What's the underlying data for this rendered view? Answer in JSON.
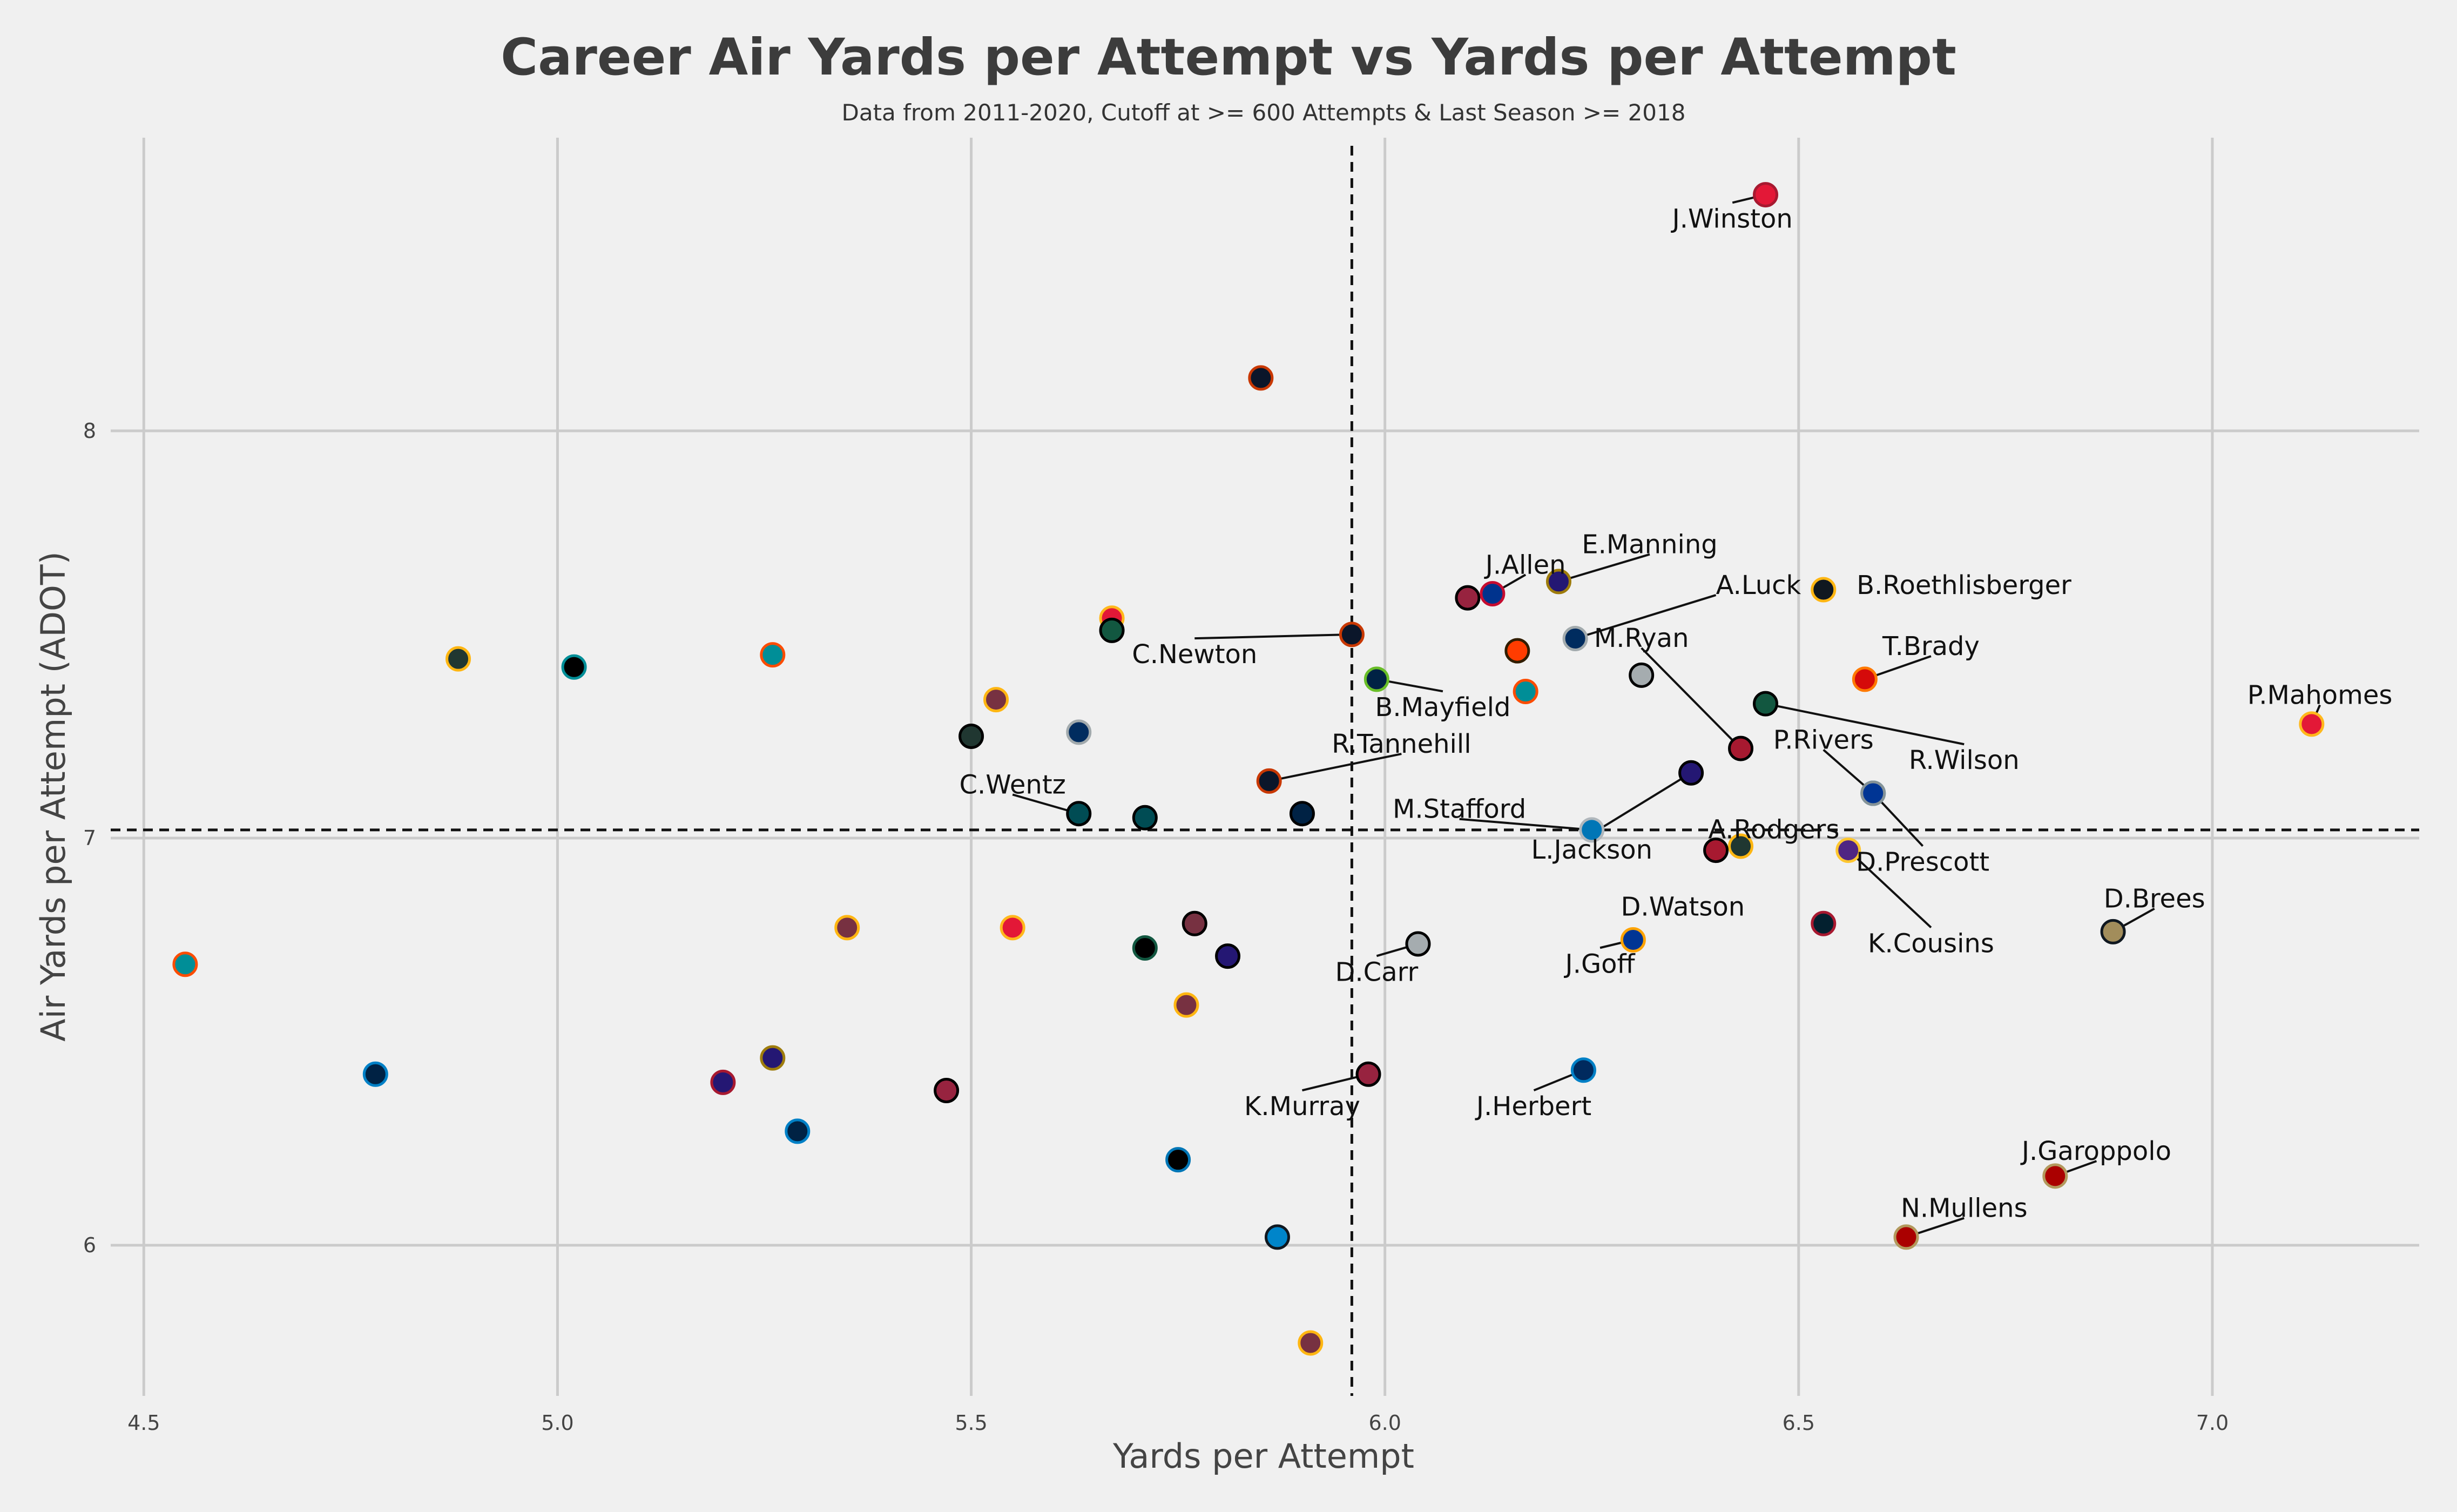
{
  "chart_data": {
    "type": "scatter",
    "title": "Career Air Yards per Attempt vs Yards per Attempt",
    "subtitle": "Data from 2011-2020, Cutoff at >= 600 Attempts & Last Season >= 2018",
    "xlabel": "Yards per Attempt",
    "ylabel": "Air Yards per Attempt (ADOT)",
    "xlim": [
      4.46,
      7.25
    ],
    "ylim": [
      5.63,
      8.72
    ],
    "xticks": [
      "4.5",
      "5.0",
      "5.5",
      "6.0",
      "6.5",
      "7.0"
    ],
    "yticks": [
      "6",
      "7",
      "8"
    ],
    "xtick_values": [
      4.5,
      5.0,
      5.5,
      6.0,
      6.5,
      7.0
    ],
    "ytick_values": [
      6,
      7,
      8
    ],
    "grid": true,
    "reference_lines": {
      "x_mean": 5.96,
      "y_mean": 7.02
    },
    "points": [
      {
        "x": 6.46,
        "y": 8.58,
        "fill": "#e31837",
        "edge": "#a71930",
        "label": "J.Winston"
      },
      {
        "x": 5.85,
        "y": 8.13,
        "fill": "#0b162a",
        "edge": "#c83803",
        "label": ""
      },
      {
        "x": 6.21,
        "y": 7.63,
        "fill": "#241773",
        "edge": "#9e7c0c",
        "label": "E.Manning"
      },
      {
        "x": 6.53,
        "y": 7.61,
        "fill": "#101820",
        "edge": "#ffb612",
        "label": "B.Roethlisberger"
      },
      {
        "x": 6.1,
        "y": 7.59,
        "fill": "#97233f",
        "edge": "#000000",
        "label": ""
      },
      {
        "x": 6.13,
        "y": 7.6,
        "fill": "#00338d",
        "edge": "#c60c30",
        "label": "J.Allen"
      },
      {
        "x": 5.67,
        "y": 7.54,
        "fill": "#e31837",
        "edge": "#ffb81c",
        "label": ""
      },
      {
        "x": 5.67,
        "y": 7.51,
        "fill": "#125740",
        "edge": "#000000",
        "label": ""
      },
      {
        "x": 5.96,
        "y": 7.5,
        "fill": "#0b162a",
        "edge": "#c83803",
        "label": "C.Newton"
      },
      {
        "x": 6.23,
        "y": 7.49,
        "fill": "#002c5f",
        "edge": "#a2aaad",
        "label": "A.Luck"
      },
      {
        "x": 6.16,
        "y": 7.46,
        "fill": "#ff3c00",
        "edge": "#311d00",
        "label": ""
      },
      {
        "x": 4.88,
        "y": 7.44,
        "fill": "#203731",
        "edge": "#ffb612",
        "label": ""
      },
      {
        "x": 5.02,
        "y": 7.42,
        "fill": "#000000",
        "edge": "#008e97",
        "label": ""
      },
      {
        "x": 5.26,
        "y": 7.45,
        "fill": "#008e97",
        "edge": "#fc4c02",
        "label": ""
      },
      {
        "x": 6.31,
        "y": 7.4,
        "fill": "#a5acaf",
        "edge": "#000000",
        "label": ""
      },
      {
        "x": 5.99,
        "y": 7.39,
        "fill": "#002244",
        "edge": "#69be28",
        "label": "B.Mayfield"
      },
      {
        "x": 6.58,
        "y": 7.39,
        "fill": "#d50a0a",
        "edge": "#ff7900",
        "label": "T.Brady"
      },
      {
        "x": 6.17,
        "y": 7.36,
        "fill": "#008e97",
        "edge": "#fc4c02",
        "label": ""
      },
      {
        "x": 5.53,
        "y": 7.34,
        "fill": "#773141",
        "edge": "#ffb612",
        "label": ""
      },
      {
        "x": 6.46,
        "y": 7.33,
        "fill": "#125740",
        "edge": "#000000",
        "label": "R.Wilson"
      },
      {
        "x": 7.12,
        "y": 7.28,
        "fill": "#e31837",
        "edge": "#ffb81c",
        "label": "P.Mahomes"
      },
      {
        "x": 5.63,
        "y": 7.26,
        "fill": "#002c5f",
        "edge": "#a2aaad",
        "label": ""
      },
      {
        "x": 5.5,
        "y": 7.25,
        "fill": "#203731",
        "edge": "#000000",
        "label": ""
      },
      {
        "x": 6.43,
        "y": 7.22,
        "fill": "#a71930",
        "edge": "#000000",
        "label": "M.Ryan"
      },
      {
        "x": 6.37,
        "y": 7.16,
        "fill": "#241773",
        "edge": "#000000",
        "label": "L.Jackson"
      },
      {
        "x": 5.86,
        "y": 7.14,
        "fill": "#0b162a",
        "edge": "#c83803",
        "label": "R.Tannehill"
      },
      {
        "x": 6.59,
        "y": 7.11,
        "fill": "#002244",
        "edge": "#0080c6",
        "label": "P.Rivers"
      },
      {
        "x": 6.59,
        "y": 7.11,
        "fill": "#003594",
        "edge": "#869397",
        "label": "D.Prescott"
      },
      {
        "x": 5.63,
        "y": 7.06,
        "fill": "#004c54",
        "edge": "#000000",
        "label": "C.Wentz"
      },
      {
        "x": 5.71,
        "y": 7.05,
        "fill": "#004c54",
        "edge": "#000000",
        "label": ""
      },
      {
        "x": 5.9,
        "y": 7.06,
        "fill": "#002244",
        "edge": "#000000",
        "label": ""
      },
      {
        "x": 6.25,
        "y": 7.02,
        "fill": "#0076b6",
        "edge": "#b0b7bc",
        "label": "M.Stafford"
      },
      {
        "x": 6.43,
        "y": 6.98,
        "fill": "#203731",
        "edge": "#ffb612",
        "label": "A.Rodgers"
      },
      {
        "x": 6.4,
        "y": 6.97,
        "fill": "#a71930",
        "edge": "#000000",
        "label": ""
      },
      {
        "x": 6.56,
        "y": 6.97,
        "fill": "#4f2683",
        "edge": "#ffc62f",
        "label": "K.Cousins"
      },
      {
        "x": 6.88,
        "y": 6.77,
        "fill": "#a28d5b",
        "edge": "#101820",
        "label": "D.Brees"
      },
      {
        "x": 6.53,
        "y": 6.79,
        "fill": "#03202f",
        "edge": "#a71930",
        "label": "D.Watson"
      },
      {
        "x": 5.35,
        "y": 6.78,
        "fill": "#773141",
        "edge": "#ffb612",
        "label": ""
      },
      {
        "x": 5.55,
        "y": 6.78,
        "fill": "#e31837",
        "edge": "#ffb81c",
        "label": ""
      },
      {
        "x": 5.77,
        "y": 6.79,
        "fill": "#773141",
        "edge": "#000000",
        "label": ""
      },
      {
        "x": 6.04,
        "y": 6.74,
        "fill": "#a5acaf",
        "edge": "#000000",
        "label": "D.Carr"
      },
      {
        "x": 6.3,
        "y": 6.75,
        "fill": "#003594",
        "edge": "#ffa300",
        "label": "J.Goff"
      },
      {
        "x": 5.71,
        "y": 6.73,
        "fill": "#000000",
        "edge": "#125740",
        "label": ""
      },
      {
        "x": 5.81,
        "y": 6.71,
        "fill": "#241773",
        "edge": "#000000",
        "label": ""
      },
      {
        "x": 4.55,
        "y": 6.69,
        "fill": "#008e97",
        "edge": "#fc4c02",
        "label": ""
      },
      {
        "x": 5.76,
        "y": 6.59,
        "fill": "#773141",
        "edge": "#ffb612",
        "label": ""
      },
      {
        "x": 5.26,
        "y": 6.46,
        "fill": "#241773",
        "edge": "#9e7c0c",
        "label": ""
      },
      {
        "x": 6.24,
        "y": 6.43,
        "fill": "#002a5e",
        "edge": "#0080c6",
        "label": "J.Herbert"
      },
      {
        "x": 4.78,
        "y": 6.42,
        "fill": "#002244",
        "edge": "#0080c6",
        "label": ""
      },
      {
        "x": 5.98,
        "y": 6.42,
        "fill": "#97233f",
        "edge": "#000000",
        "label": "K.Murray"
      },
      {
        "x": 5.2,
        "y": 6.4,
        "fill": "#241773",
        "edge": "#a71930",
        "label": ""
      },
      {
        "x": 5.47,
        "y": 6.38,
        "fill": "#97233f",
        "edge": "#000000",
        "label": ""
      },
      {
        "x": 5.29,
        "y": 6.28,
        "fill": "#002244",
        "edge": "#0080c6",
        "label": ""
      },
      {
        "x": 5.75,
        "y": 6.21,
        "fill": "#000000",
        "edge": "#0076b6",
        "label": ""
      },
      {
        "x": 6.81,
        "y": 6.17,
        "fill": "#aa0000",
        "edge": "#b3995d",
        "label": "J.Garoppolo"
      },
      {
        "x": 5.87,
        "y": 6.02,
        "fill": "#0085ca",
        "edge": "#101820",
        "label": ""
      },
      {
        "x": 6.63,
        "y": 6.02,
        "fill": "#aa0000",
        "edge": "#b3995d",
        "label": "N.Mullens"
      },
      {
        "x": 5.91,
        "y": 5.76,
        "fill": "#773141",
        "edge": "#ffb612",
        "label": ""
      }
    ],
    "labels": [
      {
        "text": "J.Winston",
        "x": 6.46,
        "y": 8.58,
        "tx": 6.42,
        "ty": 8.51,
        "anchor": "middle"
      },
      {
        "text": "E.Manning",
        "x": 6.21,
        "y": 7.63,
        "tx": 6.32,
        "ty": 7.71,
        "anchor": "middle"
      },
      {
        "text": "B.Roethlisberger",
        "x": 6.53,
        "y": 7.61,
        "tx": 6.57,
        "ty": 7.61,
        "anchor": "start",
        "noline": true
      },
      {
        "text": "J.Allen",
        "x": 6.13,
        "y": 7.6,
        "tx": 6.17,
        "ty": 7.66,
        "anchor": "middle"
      },
      {
        "text": "A.Luck",
        "x": 6.23,
        "y": 7.49,
        "tx": 6.4,
        "ty": 7.61,
        "anchor": "start"
      },
      {
        "text": "C.Newton",
        "x": 5.96,
        "y": 7.5,
        "tx": 5.77,
        "ty": 7.44,
        "anchor": "middle"
      },
      {
        "text": "M.Ryan",
        "x": 6.43,
        "y": 7.22,
        "tx": 6.31,
        "ty": 7.48,
        "anchor": "middle"
      },
      {
        "text": "T.Brady",
        "x": 6.58,
        "y": 7.39,
        "tx": 6.66,
        "ty": 7.46,
        "anchor": "middle"
      },
      {
        "text": "P.Mahomes",
        "x": 7.12,
        "y": 7.28,
        "tx": 7.13,
        "ty": 7.34,
        "anchor": "middle"
      },
      {
        "text": "B.Mayfield",
        "x": 5.99,
        "y": 7.39,
        "tx": 6.07,
        "ty": 7.31,
        "anchor": "middle"
      },
      {
        "text": "R.Tannehill",
        "x": 5.86,
        "y": 7.14,
        "tx": 6.02,
        "ty": 7.22,
        "anchor": "middle"
      },
      {
        "text": "R.Wilson",
        "x": 6.46,
        "y": 7.33,
        "tx": 6.7,
        "ty": 7.18,
        "anchor": "middle"
      },
      {
        "text": "P.Rivers",
        "x": 6.59,
        "y": 7.11,
        "tx": 6.53,
        "ty": 7.23,
        "anchor": "middle"
      },
      {
        "text": "C.Wentz",
        "x": 5.63,
        "y": 7.06,
        "tx": 5.55,
        "ty": 7.12,
        "anchor": "middle"
      },
      {
        "text": "M.Stafford",
        "x": 6.25,
        "y": 7.02,
        "tx": 6.09,
        "ty": 7.06,
        "anchor": "middle"
      },
      {
        "text": "L.Jackson",
        "x": 6.37,
        "y": 7.16,
        "tx": 6.25,
        "ty": 6.96,
        "anchor": "middle"
      },
      {
        "text": "A.Rodgers",
        "x": 6.43,
        "y": 6.98,
        "tx": 6.47,
        "ty": 7.01,
        "anchor": "middle",
        "noline": true
      },
      {
        "text": "D.Prescott",
        "x": 6.59,
        "y": 7.11,
        "tx": 6.65,
        "ty": 6.93,
        "anchor": "middle"
      },
      {
        "text": "D.Brees",
        "x": 6.88,
        "y": 6.77,
        "tx": 6.93,
        "ty": 6.84,
        "anchor": "middle"
      },
      {
        "text": "D.Watson",
        "x": 6.53,
        "y": 6.79,
        "tx": 6.36,
        "ty": 6.82,
        "anchor": "middle",
        "noline": true
      },
      {
        "text": "K.Cousins",
        "x": 6.56,
        "y": 6.97,
        "tx": 6.66,
        "ty": 6.73,
        "anchor": "middle"
      },
      {
        "text": "D.Carr",
        "x": 6.04,
        "y": 6.74,
        "tx": 5.99,
        "ty": 6.66,
        "anchor": "middle"
      },
      {
        "text": "J.Goff",
        "x": 6.3,
        "y": 6.75,
        "tx": 6.26,
        "ty": 6.68,
        "anchor": "middle"
      },
      {
        "text": "K.Murray",
        "x": 5.98,
        "y": 6.42,
        "tx": 5.9,
        "ty": 6.33,
        "anchor": "middle"
      },
      {
        "text": "J.Herbert",
        "x": 6.24,
        "y": 6.43,
        "tx": 6.18,
        "ty": 6.33,
        "anchor": "middle"
      },
      {
        "text": "J.Garoppolo",
        "x": 6.81,
        "y": 6.17,
        "tx": 6.86,
        "ty": 6.22,
        "anchor": "middle"
      },
      {
        "text": "N.Mullens",
        "x": 6.63,
        "y": 6.02,
        "tx": 6.7,
        "ty": 6.08,
        "anchor": "middle"
      }
    ]
  }
}
